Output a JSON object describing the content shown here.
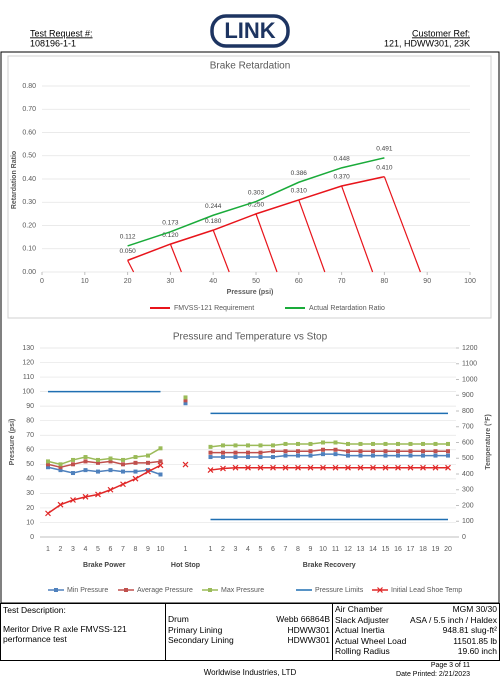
{
  "header": {
    "test_request_label": "Test Request #:",
    "test_request": "108196-1-1",
    "logo": "LINK",
    "customer_ref_label": "Customer Ref:",
    "customer_ref": "121, HDWW301, 23K"
  },
  "chart_data": [
    {
      "type": "line",
      "title": "Brake Retardation",
      "x_label": "Pressure (psi)",
      "y_label": "Retardation Ratio",
      "x": [
        20,
        30,
        40,
        50,
        60,
        70,
        80
      ],
      "xlim": [
        0,
        100
      ],
      "xticks": [
        0,
        10,
        20,
        30,
        40,
        50,
        60,
        70,
        80,
        90,
        100
      ],
      "ylim": [
        0,
        0.8
      ],
      "yticks": [
        {
          "value": 0,
          "label": "0.00"
        },
        {
          "value": 0.1,
          "label": "0.10"
        },
        {
          "value": 0.2,
          "label": "0.20"
        },
        {
          "value": 0.3,
          "label": "0.30"
        },
        {
          "value": 0.4,
          "label": "0.40"
        },
        {
          "value": 0.5,
          "label": "0.50"
        },
        {
          "value": 0.6,
          "label": "0.60"
        },
        {
          "value": 0.7,
          "label": "0.70"
        },
        {
          "value": 0.8,
          "label": "0.80"
        }
      ],
      "grid": true,
      "legend": "bottom",
      "series": [
        {
          "name": "FMVSS-121 Requirement",
          "color": "#e8141b",
          "drop_lines": true,
          "values": [
            0.05,
            0.12,
            0.18,
            0.25,
            0.31,
            0.37,
            0.41
          ],
          "value_labels": [
            "0.050",
            "0.120",
            "0.180",
            "0.250",
            "0.310",
            "0.370",
            "0.410"
          ]
        },
        {
          "name": "Actual Retardation Ratio",
          "color": "#1aab3a",
          "drop_lines": false,
          "values": [
            0.112,
            0.173,
            0.244,
            0.303,
            0.386,
            0.448,
            0.491
          ],
          "value_labels": [
            "0.112",
            "0.173",
            "0.244",
            "0.303",
            "0.386",
            "0.448",
            "0.491"
          ]
        }
      ]
    },
    {
      "type": "line",
      "title": "Pressure and Temperature vs Stop",
      "y_label": "Pressure (psi)",
      "y2_label": "Temperature (°F)",
      "groups": [
        {
          "label": "Brake Power",
          "categories": [
            "1",
            "2",
            "3",
            "4",
            "5",
            "6",
            "7",
            "8",
            "9",
            "10"
          ]
        },
        {
          "label": "Hot Stop",
          "categories": [
            "1"
          ]
        },
        {
          "label": "Brake Recovery",
          "categories": [
            "1",
            "2",
            "3",
            "4",
            "5",
            "6",
            "7",
            "8",
            "9",
            "10",
            "11",
            "12",
            "13",
            "14",
            "15",
            "16",
            "17",
            "18",
            "19",
            "20"
          ]
        }
      ],
      "ylim": [
        0,
        130
      ],
      "yticks": [
        0,
        10,
        20,
        30,
        40,
        50,
        60,
        70,
        80,
        90,
        100,
        110,
        120,
        130
      ],
      "y2lim": [
        0,
        1200
      ],
      "y2ticks": [
        0,
        100,
        200,
        300,
        400,
        500,
        600,
        700,
        800,
        900,
        1000,
        1100,
        1200
      ],
      "grid": true,
      "legend": "bottom",
      "series": [
        {
          "name": "Min Pressure",
          "color": "#4f81bd",
          "marker": "square",
          "values": [
            [
              48,
              46,
              44,
              46,
              45,
              46,
              45,
              45,
              46,
              43
            ],
            [
              92
            ],
            [
              55,
              55,
              55,
              55,
              55,
              55,
              56,
              56,
              56,
              57,
              57,
              56,
              56,
              56,
              56,
              56,
              56,
              56,
              56,
              56
            ]
          ]
        },
        {
          "name": "Average Pressure",
          "color": "#c0504d",
          "marker": "square",
          "values": [
            [
              50,
              48,
              50,
              52,
              51,
              52,
              50,
              51,
              51,
              52
            ],
            [
              94
            ],
            [
              58,
              58,
              58,
              58,
              58,
              59,
              59,
              59,
              59,
              60,
              60,
              59,
              59,
              59,
              59,
              59,
              59,
              59,
              59,
              59
            ]
          ]
        },
        {
          "name": "Max Pressure",
          "color": "#9bbb59",
          "marker": "square",
          "values": [
            [
              52,
              50,
              53,
              55,
              53,
              54,
              53,
              55,
              56,
              61
            ],
            [
              96
            ],
            [
              62,
              63,
              63,
              63,
              63,
              63,
              64,
              64,
              64,
              65,
              65,
              64,
              64,
              64,
              64,
              64,
              64,
              64,
              64,
              64
            ]
          ]
        },
        {
          "name": "Pressure Limits",
          "color": "#1f6fb2",
          "marker": "none",
          "values": [
            [
              100,
              100,
              100,
              100,
              100,
              100,
              100,
              100,
              100,
              100
            ],
            [
              null
            ],
            [
              85,
              85,
              85,
              85,
              85,
              85,
              85,
              85,
              85,
              85,
              85,
              85,
              85,
              85,
              85,
              85,
              85,
              85,
              85,
              85
            ]
          ],
          "lower_values": [
            [
              null,
              null,
              null,
              null,
              null,
              null,
              null,
              null,
              null,
              null
            ],
            [
              null
            ],
            [
              12,
              12,
              12,
              12,
              12,
              12,
              12,
              12,
              12,
              12,
              12,
              12,
              12,
              12,
              12,
              12,
              12,
              12,
              12,
              12
            ]
          ]
        },
        {
          "name": "Initial Lead Shoe Temp",
          "color": "#e02828",
          "marker": "x",
          "axis": "y2",
          "values": [
            [
              150,
              205,
              235,
              255,
              270,
              300,
              335,
              370,
              415,
              455
            ],
            [
              460
            ],
            [
              425,
              435,
              440,
              440,
              440,
              440,
              440,
              440,
              440,
              440,
              440,
              440,
              440,
              440,
              440,
              440,
              440,
              440,
              440,
              440
            ]
          ]
        }
      ]
    }
  ],
  "test_info": {
    "description_label": "Test Description:",
    "description": "Meritor Drive R axle FMVSS-121 performance test",
    "middle": [
      [
        "Drum",
        "Webb 66864B"
      ],
      [
        "Primary Lining",
        "HDWW301"
      ],
      [
        "Secondary Lining",
        "HDWW301"
      ]
    ],
    "right": [
      [
        "Air Chamber",
        "MGM 30/30"
      ],
      [
        "Slack Adjuster",
        "ASA / 5.5 inch / Haldex"
      ],
      [
        "Actual Inertia",
        "948.81 slug-ft²"
      ],
      [
        "Actual Wheel Load",
        "11501.85 lb"
      ],
      [
        "Rolling Radius",
        "19.60 inch"
      ]
    ]
  },
  "footer": {
    "company": "Worldwise Industries, LTD",
    "page": "Page 3 of 11",
    "date": "Date Printed: 2/21/2023"
  }
}
